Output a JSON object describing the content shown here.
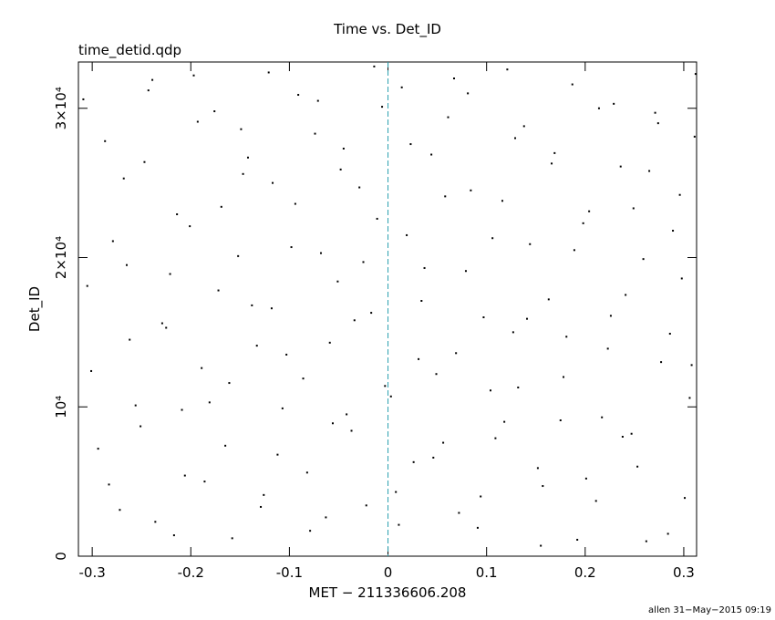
{
  "chart_data": {
    "type": "scatter",
    "title": "Time vs. Det_ID",
    "subtitle": "time_detid.qdp",
    "x_label": "MET − 211336606.208",
    "y_label": "Det_ID",
    "footer": "allen 31−May−2015 09:19",
    "xlim": [
      -0.314,
      0.313
    ],
    "ylim": [
      0,
      33100
    ],
    "xticks": [
      -0.3,
      -0.2,
      -0.1,
      0,
      0.1,
      0.2,
      0.3
    ],
    "yticks": [
      0,
      {
        "value": 10000,
        "label": "10⁴"
      },
      {
        "value": 20000,
        "label": "2×10⁴"
      },
      {
        "value": 30000,
        "label": "3×10⁴"
      }
    ],
    "reference_line": {
      "x": 0,
      "color": "#2a9fb0"
    },
    "x": [
      -0.301,
      -0.287,
      -0.272,
      -0.265,
      -0.251,
      -0.243,
      -0.229,
      -0.214,
      -0.206,
      -0.193,
      -0.181,
      -0.172,
      -0.158,
      -0.147,
      -0.133,
      -0.121,
      -0.112,
      -0.098,
      -0.086,
      -0.074,
      -0.063,
      -0.051,
      -0.042,
      -0.029,
      -0.017,
      -0.006,
      0.008,
      0.019,
      0.031,
      0.044,
      0.056,
      0.067,
      0.079,
      0.091,
      0.104,
      0.116,
      0.127,
      0.138,
      0.152,
      0.163,
      0.175,
      0.187,
      0.198,
      0.211,
      0.223,
      0.236,
      0.247,
      0.259,
      0.271,
      0.284,
      0.296,
      0.308,
      -0.309,
      -0.294,
      -0.279,
      -0.262,
      -0.247,
      -0.236,
      -0.221,
      -0.209,
      -0.197,
      -0.186,
      -0.169,
      -0.161,
      -0.149,
      -0.138,
      -0.126,
      -0.117,
      -0.103,
      -0.091,
      -0.079,
      -0.068,
      -0.056,
      -0.045,
      -0.034,
      -0.022,
      -0.011,
      0.003,
      0.014,
      0.026,
      0.037,
      0.049,
      0.061,
      0.072,
      0.084,
      0.097,
      0.109,
      0.121,
      0.132,
      0.144,
      0.157,
      0.169,
      0.181,
      0.192,
      0.204,
      0.217,
      0.229,
      0.241,
      0.253,
      0.265,
      0.277,
      0.289,
      0.301,
      0.311,
      -0.305,
      -0.283,
      -0.268,
      -0.256,
      -0.239,
      -0.225,
      -0.217,
      -0.201,
      -0.189,
      -0.176,
      -0.165,
      -0.152,
      -0.142,
      -0.129,
      -0.118,
      -0.107,
      -0.094,
      -0.082,
      -0.071,
      -0.059,
      -0.048,
      -0.037,
      -0.025,
      -0.014,
      -0.003,
      0.011,
      0.023,
      0.034,
      0.046,
      0.058,
      0.069,
      0.081,
      0.094,
      0.106,
      0.118,
      0.129,
      0.141,
      0.155,
      0.166,
      0.178,
      0.189,
      0.201,
      0.214,
      0.226,
      0.238,
      0.249,
      0.262,
      0.274,
      0.286,
      0.298,
      0.306,
      0.312
    ],
    "series": [
      {
        "color": "#000000",
        "values": [
          12400,
          27800,
          3100,
          19500,
          8700,
          31200,
          15600,
          22900,
          5400,
          29100,
          10300,
          17800,
          1200,
          25600,
          14100,
          32400,
          6800,
          20700,
          11900,
          28300,
          2600,
          18400,
          9500,
          24700,
          16300,
          30100,
          4300,
          21500,
          13200,
          26900,
          7600,
          32000,
          19100,
          1900,
          11100,
          23800,
          15000,
          28800,
          5900,
          17200,
          9100,
          31600,
          22300,
          3700,
          13900,
          26100,
          8200,
          19900,
          29700,
          1500,
          24200,
          12800,
          30600,
          7200,
          21100,
          14500,
          26400,
          2300,
          18900,
          9800,
          32200,
          5000,
          23400,
          11600,
          28600,
          16800,
          4100,
          25000,
          13500,
          30900,
          1700,
          20300,
          8900,
          27300,
          15800,
          3400,
          22600,
          10700,
          31400,
          6300,
          19300,
          12200,
          29400,
          2900,
          24500,
          16000,
          7900,
          32600,
          11300,
          20900,
          4700,
          27000,
          14700,
          1100,
          23100,
          9300,
          30300,
          17500,
          6000,
          25800,
          13000,
          21800,
          3900,
          28100,
          18100,
          4800,
          25300,
          10100,
          31900,
          15300,
          1400,
          22100,
          12600,
          29800,
          7400,
          20100,
          26700,
          3300,
          16600,
          9900,
          23600,
          5600,
          30500,
          14300,
          25900,
          8400,
          19700,
          32800,
          11400,
          2100,
          27600,
          17100,
          6600,
          24100,
          13600,
          31000,
          4000,
          21300,
          9000,
          28000,
          15900,
          700,
          26300,
          12000,
          20500,
          5200,
          30000,
          16100,
          8000,
          23300,
          1000,
          29000,
          14900,
          18600,
          10600,
          32300
        ]
      }
    ]
  }
}
